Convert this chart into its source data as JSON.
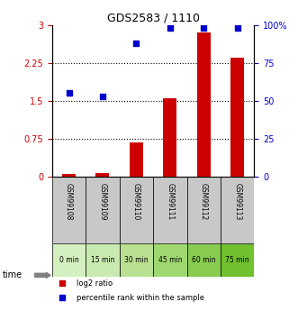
{
  "title": "GDS2583 / 1110",
  "samples": [
    "GSM99108",
    "GSM99109",
    "GSM99110",
    "GSM99111",
    "GSM99112",
    "GSM99113"
  ],
  "time_labels": [
    "0 min",
    "15 min",
    "30 min",
    "45 min",
    "60 min",
    "75 min"
  ],
  "log2_ratio": [
    0.05,
    0.07,
    0.68,
    1.55,
    2.85,
    2.35
  ],
  "percentile_rank": [
    55,
    53,
    88,
    98,
    98,
    98
  ],
  "ylim_left": [
    0,
    3
  ],
  "ylim_right": [
    0,
    100
  ],
  "yticks_left": [
    0,
    0.75,
    1.5,
    2.25,
    3
  ],
  "yticks_right": [
    0,
    25,
    50,
    75,
    100
  ],
  "ytick_labels_left": [
    "0",
    "0.75",
    "1.5",
    "2.25",
    "3"
  ],
  "ytick_labels_right": [
    "0",
    "25",
    "50",
    "75",
    "100%"
  ],
  "bar_color": "#cc0000",
  "dot_color": "#0000cc",
  "bar_width": 0.4,
  "time_colors": [
    "#d4f0c0",
    "#c8eab0",
    "#b8e090",
    "#a0d870",
    "#88cc50",
    "#70c030"
  ],
  "sample_box_color": "#c8c8c8",
  "legend_log2": "log2 ratio",
  "legend_pct": "percentile rank within the sample",
  "grid_color": "#000000",
  "grid_linestyle": "dotted"
}
